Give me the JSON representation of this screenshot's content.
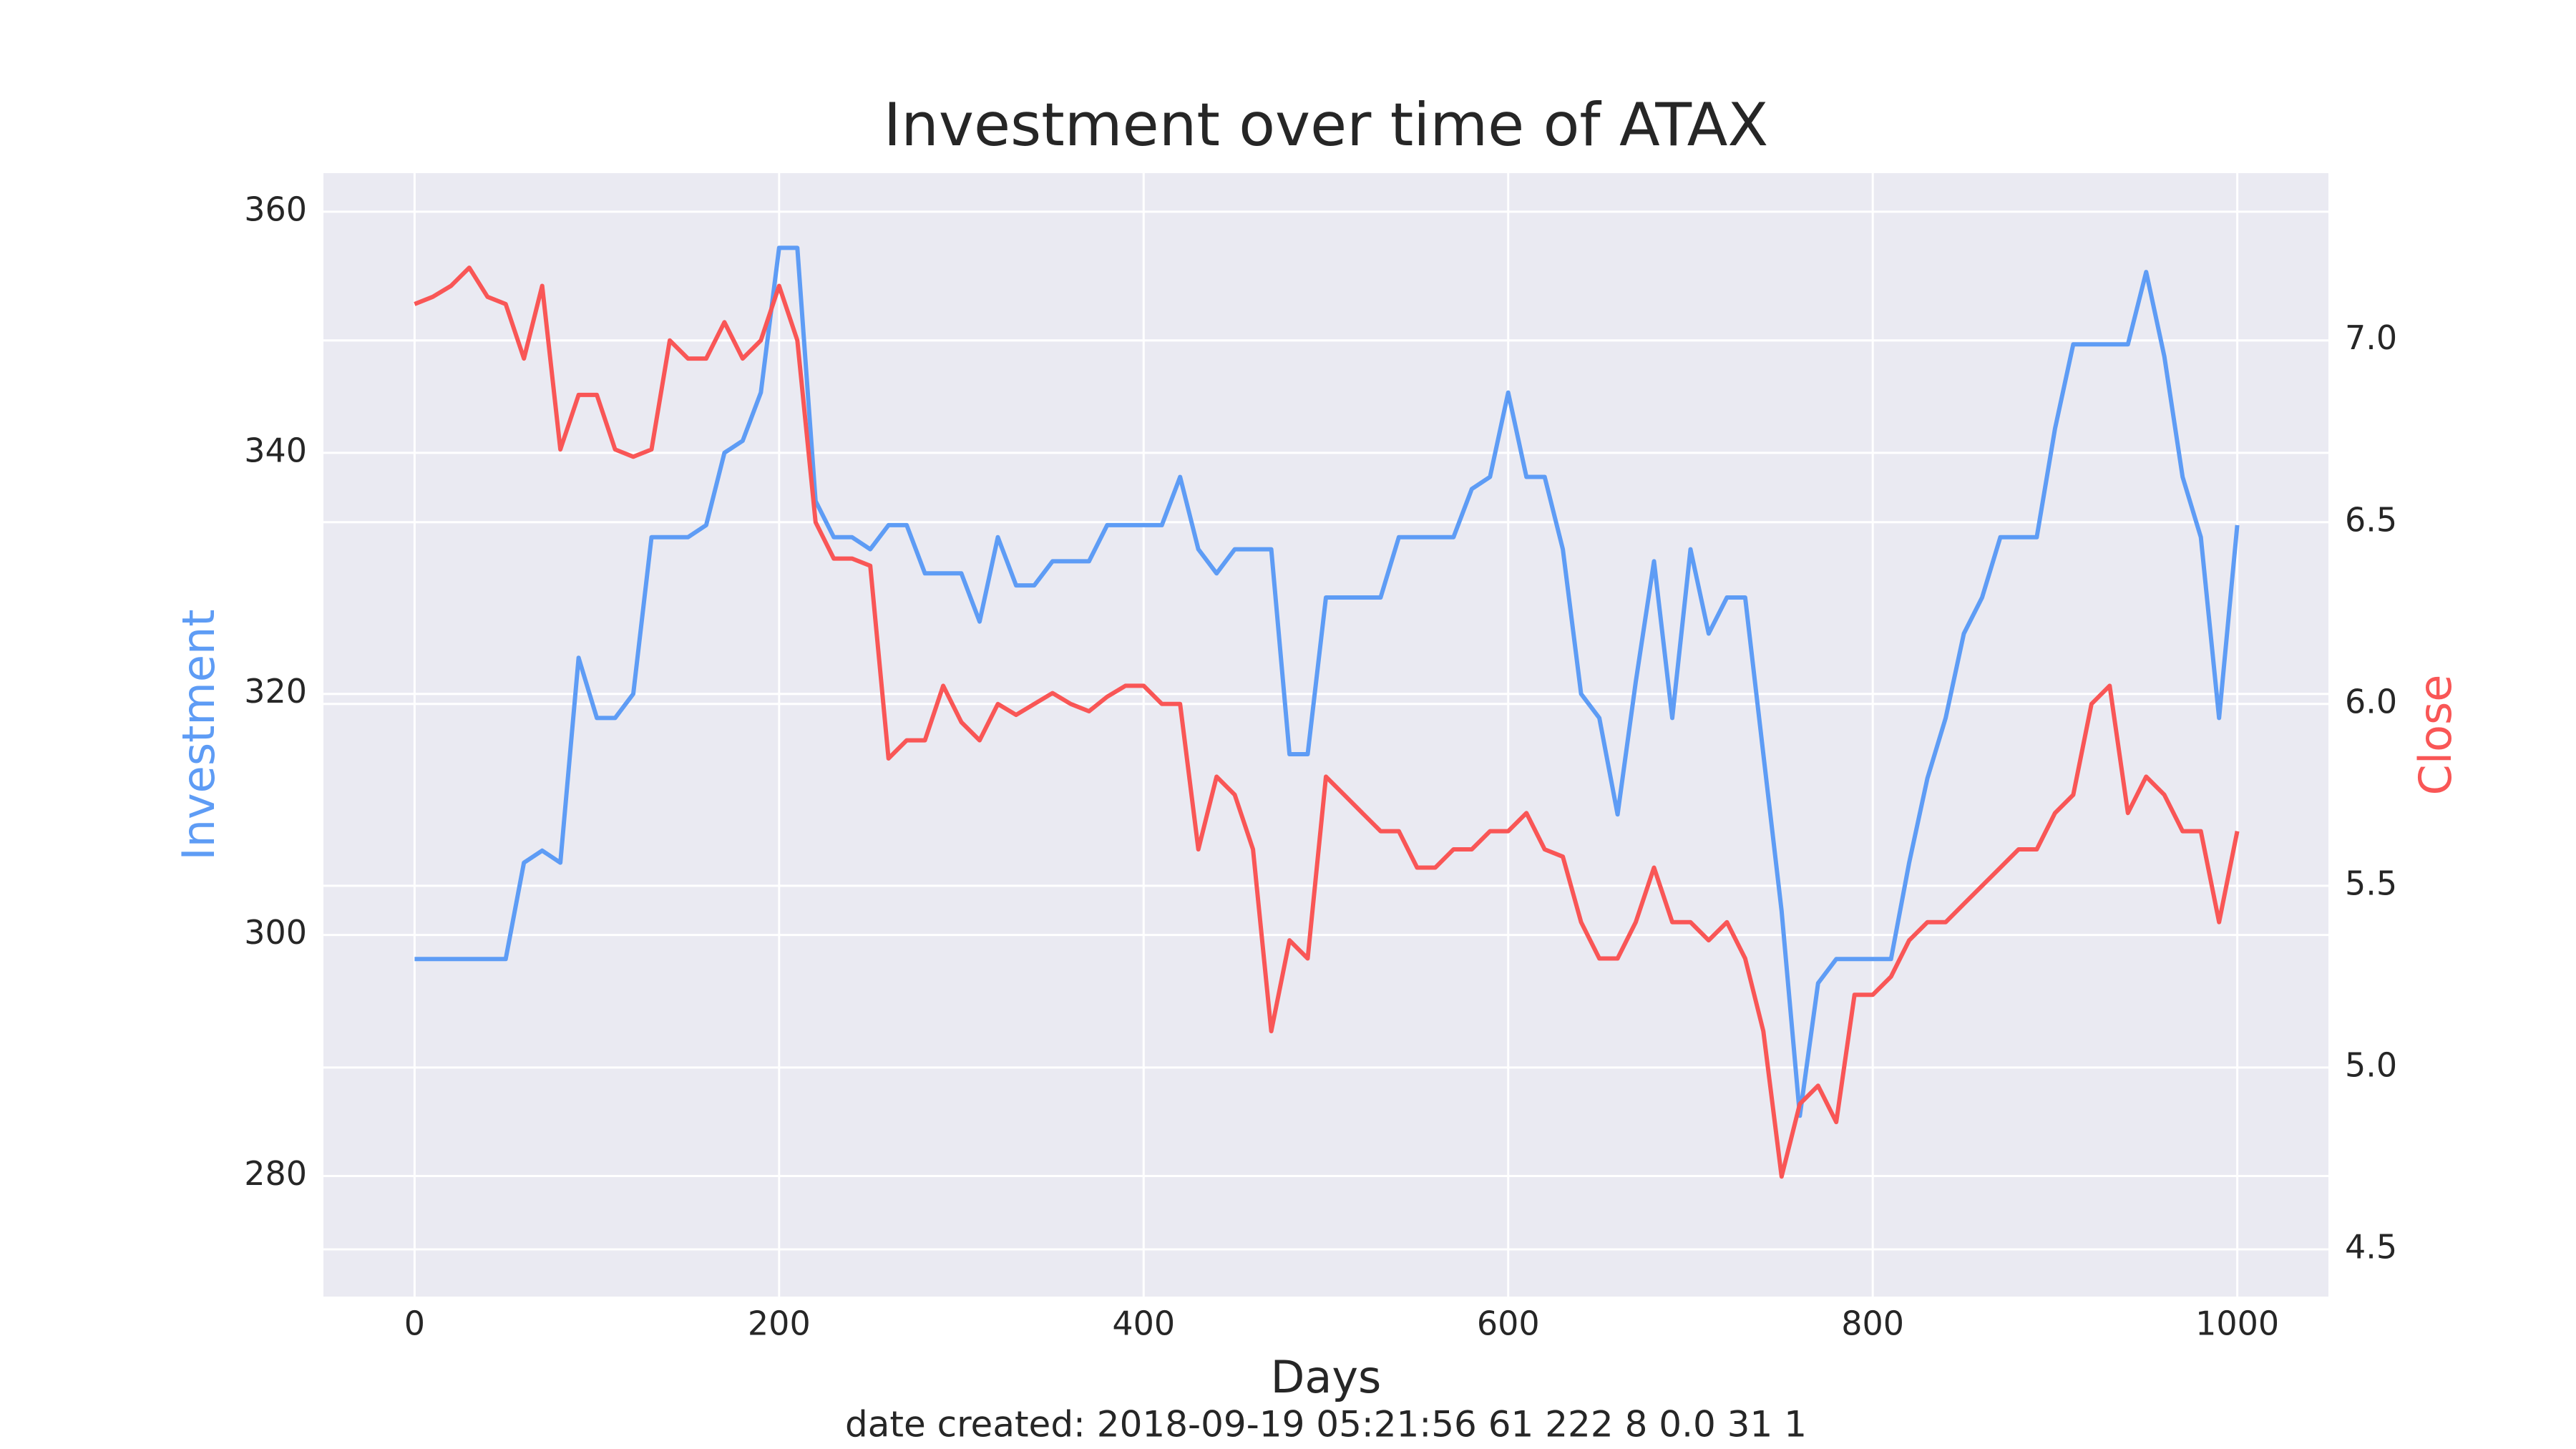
{
  "chart_data": {
    "type": "line",
    "title": "Investment over time of ATAX",
    "xlabel": "Days",
    "footer": "date created: 2018-09-19 05:21:56 61 222 8 0.0 31 1",
    "x": [
      0,
      10,
      20,
      30,
      40,
      50,
      60,
      70,
      80,
      90,
      100,
      110,
      120,
      130,
      140,
      150,
      160,
      170,
      180,
      190,
      200,
      210,
      220,
      230,
      240,
      250,
      260,
      270,
      280,
      290,
      300,
      310,
      320,
      330,
      340,
      350,
      360,
      370,
      380,
      390,
      400,
      410,
      420,
      430,
      440,
      450,
      460,
      470,
      480,
      490,
      500,
      510,
      520,
      530,
      540,
      550,
      560,
      570,
      580,
      590,
      600,
      610,
      620,
      630,
      640,
      650,
      660,
      670,
      680,
      690,
      700,
      710,
      720,
      730,
      740,
      750,
      760,
      770,
      780,
      790,
      800,
      810,
      820,
      830,
      840,
      850,
      860,
      870,
      880,
      890,
      900,
      910,
      920,
      930,
      940,
      950,
      960,
      970,
      980,
      990,
      1000
    ],
    "series": [
      {
        "name": "Investment",
        "color": "#5e9cf5",
        "axis": "y",
        "values": [
          298,
          298,
          298,
          298,
          298,
          298,
          306,
          307,
          306,
          323,
          318,
          318,
          320,
          333,
          333,
          333,
          334,
          340,
          341,
          345,
          357,
          357,
          336,
          333,
          333,
          332,
          334,
          334,
          330,
          330,
          330,
          326,
          333,
          329,
          329,
          331,
          331,
          331,
          334,
          334,
          334,
          334,
          338,
          332,
          330,
          332,
          332,
          332,
          315,
          315,
          328,
          328,
          328,
          328,
          333,
          333,
          333,
          333,
          337,
          338,
          345,
          338,
          338,
          332,
          320,
          318,
          310,
          321,
          331,
          318,
          332,
          325,
          328,
          328,
          315,
          302,
          285,
          296,
          298,
          298,
          298,
          298,
          306,
          313,
          318,
          325,
          328,
          333,
          333,
          333,
          342,
          349,
          349,
          349,
          349,
          355,
          348,
          338,
          333,
          318,
          334
        ]
      },
      {
        "name": "Close",
        "color": "#f95656",
        "axis": "y2",
        "values": [
          7.1,
          7.12,
          7.15,
          7.2,
          7.12,
          7.1,
          6.95,
          7.15,
          6.7,
          6.85,
          6.85,
          6.7,
          6.68,
          6.7,
          7.0,
          6.95,
          6.95,
          7.05,
          6.95,
          7.0,
          7.15,
          7.0,
          6.5,
          6.4,
          6.4,
          6.38,
          5.85,
          5.9,
          5.9,
          6.05,
          5.95,
          5.9,
          6.0,
          5.97,
          6.0,
          6.03,
          6.0,
          5.98,
          6.02,
          6.05,
          6.05,
          6.0,
          6.0,
          5.6,
          5.8,
          5.75,
          5.6,
          5.1,
          5.35,
          5.3,
          5.8,
          5.75,
          5.7,
          5.65,
          5.65,
          5.55,
          5.55,
          5.6,
          5.6,
          5.65,
          5.65,
          5.7,
          5.6,
          5.58,
          5.4,
          5.3,
          5.3,
          5.4,
          5.55,
          5.4,
          5.4,
          5.35,
          5.4,
          5.3,
          5.1,
          4.7,
          4.9,
          4.95,
          4.85,
          5.2,
          5.2,
          5.25,
          5.35,
          5.4,
          5.4,
          5.45,
          5.5,
          5.55,
          5.6,
          5.6,
          5.7,
          5.75,
          6.0,
          6.05,
          5.7,
          5.8,
          5.75,
          5.65,
          5.65,
          5.4,
          5.65
        ]
      }
    ],
    "xlim": [
      -50,
      1050
    ],
    "xticks": [
      0,
      200,
      400,
      600,
      800,
      1000
    ],
    "ylim": [
      270,
      363.2
    ],
    "yticks": [
      280,
      300,
      320,
      340,
      360
    ],
    "y2lim": [
      4.37,
      7.46
    ],
    "y2ticks": [
      4.5,
      {
        "value": 5,
        "label": "5.0"
      },
      5.5,
      {
        "value": 6,
        "label": "6.0"
      },
      6.5,
      {
        "value": 7,
        "label": "7.0"
      }
    ],
    "grid": true,
    "background": "#eaeaf2"
  }
}
